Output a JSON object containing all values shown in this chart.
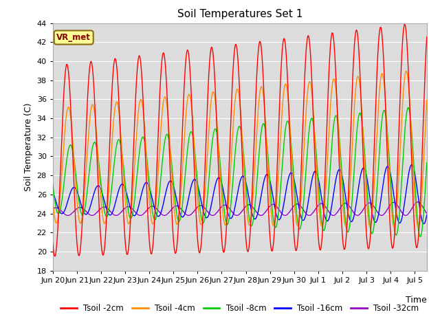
{
  "title": "Soil Temperatures Set 1",
  "xlabel": "Time",
  "ylabel": "Soil Temperature (C)",
  "ylim": [
    18,
    44
  ],
  "yticks": [
    18,
    20,
    22,
    24,
    26,
    28,
    30,
    32,
    34,
    36,
    38,
    40,
    42,
    44
  ],
  "annotation": "VR_met",
  "plot_bg": "#dcdcdc",
  "series": [
    {
      "label": "Tsoil -2cm",
      "color": "#ff0000"
    },
    {
      "label": "Tsoil -4cm",
      "color": "#ff8c00"
    },
    {
      "label": "Tsoil -8cm",
      "color": "#00cc00"
    },
    {
      "label": "Tsoil -16cm",
      "color": "#0000ff"
    },
    {
      "label": "Tsoil -32cm",
      "color": "#9900cc"
    }
  ],
  "x_tick_labels": [
    "Jun 20",
    "Jun 21",
    "Jun 22",
    "Jun 23",
    "Jun 24",
    "Jun 25",
    "Jun 26",
    "Jun 27",
    "Jun 28",
    "Jun 29",
    "Jun 30",
    "Jul 1",
    "Jul 2",
    "Jul 3",
    "Jul 4",
    "Jul 5"
  ],
  "total_days": 15.5,
  "dt_hours": 0.25
}
